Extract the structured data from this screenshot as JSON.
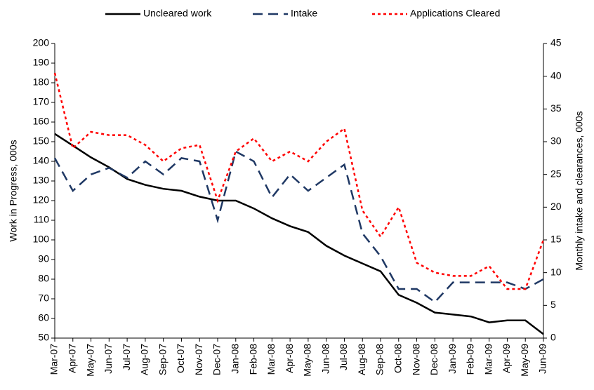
{
  "chart_data": {
    "type": "line",
    "categories": [
      "Mar-07",
      "Apr-07",
      "May-07",
      "Jun-07",
      "Jul-07",
      "Aug-07",
      "Sep-07",
      "Oct-07",
      "Nov-07",
      "Dec-07",
      "Jan-08",
      "Feb-08",
      "Mar-08",
      "Apr-08",
      "May-08",
      "Jun-08",
      "Jul-08",
      "Aug-08",
      "Sep-08",
      "Oct-08",
      "Nov-08",
      "Dec-08",
      "Jan-09",
      "Feb-09",
      "Mar-09",
      "Apr-09",
      "May-09",
      "Jun-09"
    ],
    "series": [
      {
        "name": "Uncleared work",
        "color": "#000000",
        "dash": "solid",
        "axis": "y",
        "values": [
          154,
          148,
          142,
          137,
          131,
          128,
          126,
          125,
          122,
          120,
          120,
          116,
          111,
          107,
          104,
          97,
          92,
          88,
          84,
          72,
          68,
          63,
          62,
          61,
          58,
          59,
          59,
          52
        ]
      },
      {
        "name": "Intake",
        "color": "#1f3864",
        "dash": "dashed",
        "axis": "y2",
        "values": [
          27.5,
          22.5,
          25,
          26,
          24.5,
          27,
          25,
          27.5,
          27,
          18,
          28.5,
          27,
          21.5,
          25,
          22.5,
          24.5,
          26.5,
          16,
          12.5,
          7.5,
          7.5,
          5.5,
          8.5,
          8.5,
          8.5,
          8.5,
          7.5,
          9
        ]
      },
      {
        "name": "Applications Cleared",
        "color": "#ff0000",
        "dash": "dotted",
        "axis": "y2",
        "values": [
          40.5,
          29,
          31.5,
          31,
          31,
          29.5,
          27,
          29,
          29.5,
          21,
          28.5,
          30.5,
          27,
          28.5,
          27,
          30,
          32,
          19.5,
          15.5,
          20,
          11.5,
          10,
          9.5,
          9.5,
          11,
          7.5,
          7.5,
          15
        ]
      }
    ],
    "ylabel": "Work in Progress, 000s",
    "y2label": "Monthly intake and clearances, 000s",
    "ylim": [
      50,
      200
    ],
    "yticks": [
      50,
      60,
      70,
      80,
      90,
      100,
      110,
      120,
      130,
      140,
      150,
      160,
      170,
      180,
      190,
      200
    ],
    "y2lim": [
      0,
      45
    ],
    "y2ticks": [
      0,
      5,
      10,
      15,
      20,
      25,
      30,
      35,
      40,
      45
    ],
    "legend": "top"
  }
}
